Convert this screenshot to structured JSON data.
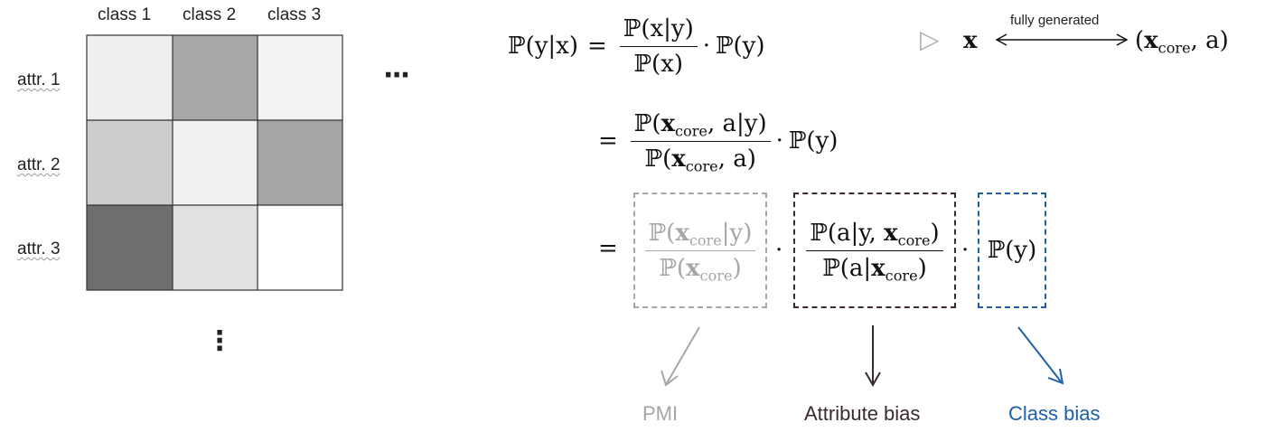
{
  "matrix": {
    "column_labels": [
      "class 1",
      "class 2",
      "class 3"
    ],
    "row_labels": [
      "attr. 1",
      "attr. 2",
      "attr. 3"
    ],
    "cell_shades": [
      [
        "#efefef",
        "#a8a8a8",
        "#f3f3f3"
      ],
      [
        "#cdcdcd",
        "#f1f1f1",
        "#a6a6a6"
      ],
      [
        "#6e6e6e",
        "#e1e1e1",
        "#ffffff"
      ]
    ],
    "horizontal_ellipsis": "···",
    "vertical_ellipsis": "⋮"
  },
  "equation": {
    "lhs_prob": "ℙ",
    "lhs_args": "(y|x)",
    "eq": "=",
    "dot": "·",
    "line1": {
      "num": "ℙ(x|y)",
      "den": "ℙ(x)",
      "tail": "ℙ(y)"
    },
    "line2": {
      "num_pre": "ℙ(",
      "num_x": "x",
      "core": "core",
      "num_post": ", a|y)",
      "den_pre": "ℙ(",
      "den_x": "x",
      "den_post": ", a)",
      "tail": "ℙ(y)"
    },
    "line3": {
      "pmi_num_pre": "ℙ(",
      "pmi_num_x": "x",
      "pmi_num_post": "|y)",
      "pmi_den_pre": "ℙ(",
      "pmi_den_x": "x",
      "pmi_den_post": ")",
      "attr_num_pre": "ℙ(a|y, ",
      "attr_num_x": "x",
      "attr_num_post": ")",
      "attr_den_pre": "ℙ(a|",
      "attr_den_x": "x",
      "attr_den_post": ")",
      "class_term": "ℙ(y)"
    }
  },
  "generation": {
    "triangle": "▷",
    "x": "x",
    "arrow_label": "fully generated",
    "rhs_pre": "(",
    "rhs_x": "x",
    "rhs_sub": "core",
    "rhs_post": ", a)"
  },
  "labels": {
    "pmi": "PMI",
    "attribute_bias": "Attribute bias",
    "class_bias": "Class bias"
  },
  "colors": {
    "pmi": "#a6a6a6",
    "attribute": "#3b2a30",
    "class": "#1e5fa8",
    "grid_line": "#333333"
  }
}
